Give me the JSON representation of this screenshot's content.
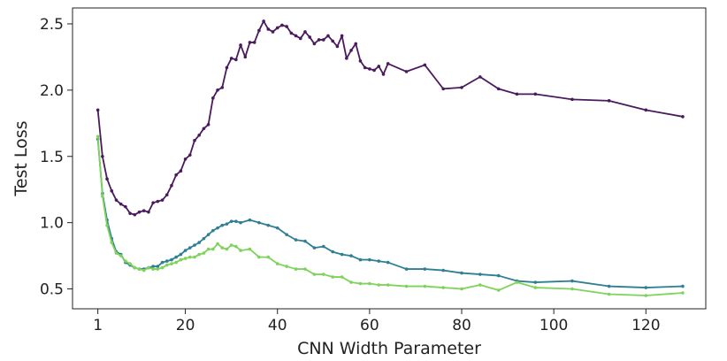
{
  "chart_data": {
    "type": "line",
    "title": "",
    "xlabel": "CNN Width Parameter",
    "ylabel": "Test Loss",
    "xlim": [
      -4.5,
      133
    ],
    "ylim": [
      0.35,
      2.62
    ],
    "xticks": [
      1,
      20,
      40,
      60,
      80,
      100,
      120
    ],
    "xtick_labels": [
      "1",
      "20",
      "40",
      "60",
      "80",
      "100",
      "120"
    ],
    "yticks": [
      0.5,
      1.0,
      1.5,
      2.0,
      2.5
    ],
    "ytick_labels": [
      "0.5",
      "1.0",
      "1.5",
      "2.0",
      "2.5"
    ],
    "grid": false,
    "legend": "none",
    "series": [
      {
        "color": "#4a1a5e",
        "points": [
          [
            1,
            1.85
          ],
          [
            2,
            1.5
          ],
          [
            3,
            1.33
          ],
          [
            4,
            1.24
          ],
          [
            5,
            1.17
          ],
          [
            6,
            1.14
          ],
          [
            7,
            1.12
          ],
          [
            8,
            1.07
          ],
          [
            9,
            1.06
          ],
          [
            10,
            1.08
          ],
          [
            11,
            1.09
          ],
          [
            12,
            1.08
          ],
          [
            13,
            1.15
          ],
          [
            14,
            1.16
          ],
          [
            15,
            1.17
          ],
          [
            16,
            1.21
          ],
          [
            17,
            1.28
          ],
          [
            18,
            1.36
          ],
          [
            19,
            1.39
          ],
          [
            20,
            1.48
          ],
          [
            21,
            1.51
          ],
          [
            22,
            1.62
          ],
          [
            23,
            1.66
          ],
          [
            24,
            1.71
          ],
          [
            25,
            1.74
          ],
          [
            26,
            1.94
          ],
          [
            27,
            2.0
          ],
          [
            28,
            2.02
          ],
          [
            29,
            2.17
          ],
          [
            30,
            2.24
          ],
          [
            31,
            2.23
          ],
          [
            32,
            2.34
          ],
          [
            33,
            2.25
          ],
          [
            34,
            2.36
          ],
          [
            35,
            2.36
          ],
          [
            36,
            2.45
          ],
          [
            37,
            2.52
          ],
          [
            38,
            2.46
          ],
          [
            39,
            2.44
          ],
          [
            40,
            2.47
          ],
          [
            41,
            2.49
          ],
          [
            42,
            2.48
          ],
          [
            43,
            2.43
          ],
          [
            44,
            2.41
          ],
          [
            45,
            2.39
          ],
          [
            46,
            2.44
          ],
          [
            47,
            2.4
          ],
          [
            48,
            2.35
          ],
          [
            49,
            2.38
          ],
          [
            50,
            2.38
          ],
          [
            51,
            2.41
          ],
          [
            52,
            2.37
          ],
          [
            53,
            2.33
          ],
          [
            54,
            2.41
          ],
          [
            55,
            2.24
          ],
          [
            56,
            2.3
          ],
          [
            57,
            2.35
          ],
          [
            58,
            2.22
          ],
          [
            59,
            2.17
          ],
          [
            60,
            2.16
          ],
          [
            61,
            2.15
          ],
          [
            62,
            2.18
          ],
          [
            63,
            2.12
          ],
          [
            64,
            2.2
          ],
          [
            68,
            2.14
          ],
          [
            72,
            2.19
          ],
          [
            76,
            2.01
          ],
          [
            80,
            2.02
          ],
          [
            84,
            2.1
          ],
          [
            88,
            2.01
          ],
          [
            92,
            1.97
          ],
          [
            96,
            1.97
          ],
          [
            104,
            1.93
          ],
          [
            112,
            1.92
          ],
          [
            120,
            1.85
          ],
          [
            128,
            1.8
          ]
        ]
      },
      {
        "color": "#2e7f93",
        "points": [
          [
            1,
            1.63
          ],
          [
            2,
            1.22
          ],
          [
            3,
            1.02
          ],
          [
            4,
            0.88
          ],
          [
            5,
            0.78
          ],
          [
            6,
            0.76
          ],
          [
            7,
            0.7
          ],
          [
            8,
            0.68
          ],
          [
            9,
            0.66
          ],
          [
            10,
            0.65
          ],
          [
            11,
            0.65
          ],
          [
            12,
            0.66
          ],
          [
            13,
            0.67
          ],
          [
            14,
            0.67
          ],
          [
            15,
            0.7
          ],
          [
            16,
            0.71
          ],
          [
            17,
            0.72
          ],
          [
            18,
            0.74
          ],
          [
            19,
            0.76
          ],
          [
            20,
            0.79
          ],
          [
            21,
            0.81
          ],
          [
            22,
            0.83
          ],
          [
            23,
            0.85
          ],
          [
            24,
            0.88
          ],
          [
            25,
            0.91
          ],
          [
            26,
            0.94
          ],
          [
            27,
            0.96
          ],
          [
            28,
            0.98
          ],
          [
            29,
            0.99
          ],
          [
            30,
            1.01
          ],
          [
            31,
            1.01
          ],
          [
            32,
            1.0
          ],
          [
            34,
            1.02
          ],
          [
            36,
            1.0
          ],
          [
            38,
            0.98
          ],
          [
            40,
            0.96
          ],
          [
            42,
            0.91
          ],
          [
            44,
            0.87
          ],
          [
            46,
            0.86
          ],
          [
            48,
            0.81
          ],
          [
            50,
            0.82
          ],
          [
            52,
            0.78
          ],
          [
            54,
            0.76
          ],
          [
            56,
            0.75
          ],
          [
            58,
            0.72
          ],
          [
            60,
            0.72
          ],
          [
            62,
            0.71
          ],
          [
            64,
            0.7
          ],
          [
            68,
            0.65
          ],
          [
            72,
            0.65
          ],
          [
            76,
            0.64
          ],
          [
            80,
            0.62
          ],
          [
            84,
            0.61
          ],
          [
            88,
            0.6
          ],
          [
            92,
            0.56
          ],
          [
            96,
            0.55
          ],
          [
            104,
            0.56
          ],
          [
            112,
            0.52
          ],
          [
            120,
            0.51
          ],
          [
            128,
            0.52
          ]
        ]
      },
      {
        "color": "#7fd35a",
        "points": [
          [
            1,
            1.65
          ],
          [
            2,
            1.2
          ],
          [
            3,
            0.98
          ],
          [
            4,
            0.85
          ],
          [
            5,
            0.77
          ],
          [
            6,
            0.75
          ],
          [
            7,
            0.71
          ],
          [
            8,
            0.69
          ],
          [
            9,
            0.66
          ],
          [
            10,
            0.65
          ],
          [
            11,
            0.64
          ],
          [
            12,
            0.66
          ],
          [
            13,
            0.65
          ],
          [
            14,
            0.65
          ],
          [
            15,
            0.66
          ],
          [
            16,
            0.68
          ],
          [
            17,
            0.69
          ],
          [
            18,
            0.7
          ],
          [
            19,
            0.72
          ],
          [
            20,
            0.73
          ],
          [
            21,
            0.74
          ],
          [
            22,
            0.74
          ],
          [
            23,
            0.76
          ],
          [
            24,
            0.77
          ],
          [
            25,
            0.8
          ],
          [
            26,
            0.8
          ],
          [
            27,
            0.84
          ],
          [
            28,
            0.81
          ],
          [
            29,
            0.8
          ],
          [
            30,
            0.83
          ],
          [
            31,
            0.82
          ],
          [
            32,
            0.79
          ],
          [
            34,
            0.8
          ],
          [
            36,
            0.74
          ],
          [
            38,
            0.74
          ],
          [
            40,
            0.69
          ],
          [
            42,
            0.67
          ],
          [
            44,
            0.65
          ],
          [
            46,
            0.65
          ],
          [
            48,
            0.61
          ],
          [
            50,
            0.61
          ],
          [
            52,
            0.59
          ],
          [
            54,
            0.59
          ],
          [
            56,
            0.55
          ],
          [
            58,
            0.54
          ],
          [
            60,
            0.54
          ],
          [
            62,
            0.53
          ],
          [
            64,
            0.53
          ],
          [
            68,
            0.52
          ],
          [
            72,
            0.52
          ],
          [
            76,
            0.51
          ],
          [
            80,
            0.5
          ],
          [
            84,
            0.53
          ],
          [
            88,
            0.49
          ],
          [
            92,
            0.55
          ],
          [
            96,
            0.51
          ],
          [
            104,
            0.5
          ],
          [
            112,
            0.46
          ],
          [
            120,
            0.45
          ],
          [
            128,
            0.47
          ]
        ]
      }
    ]
  }
}
